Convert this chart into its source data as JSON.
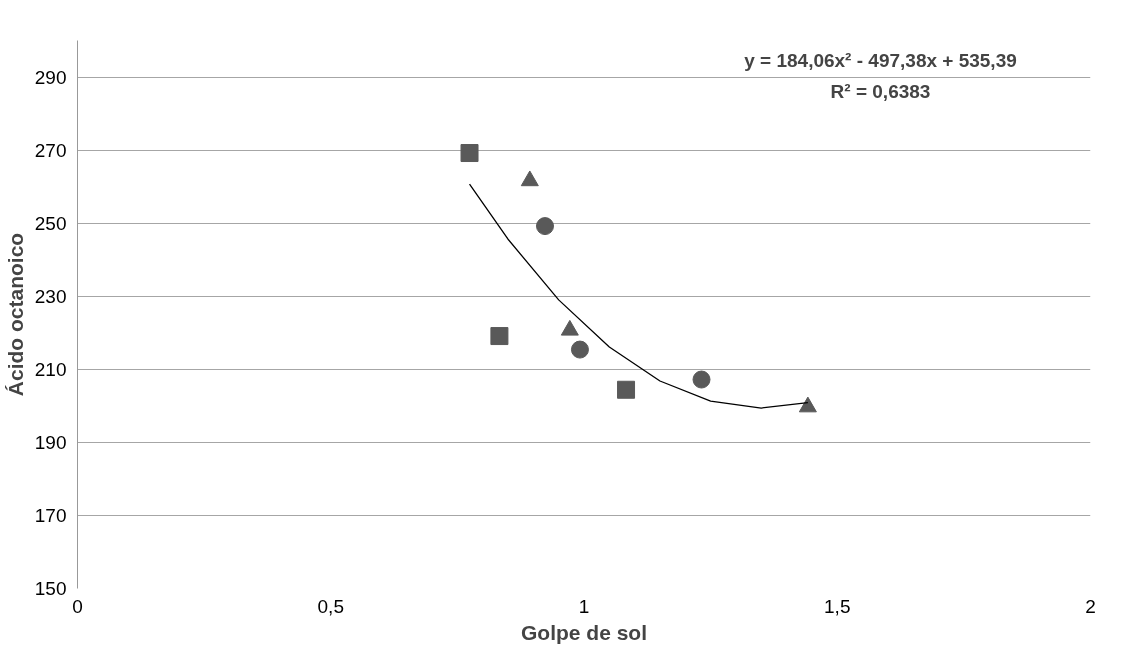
{
  "chart_data": {
    "type": "scatter",
    "xlabel": "Golpe de sol",
    "ylabel": "Ácido octanoico",
    "xlim": [
      0,
      2
    ],
    "xticks": [
      0,
      {
        "value": 0.5,
        "label": "0,5"
      },
      1,
      {
        "value": 1.5,
        "label": "1,5"
      },
      2
    ],
    "ylim": [
      150,
      300
    ],
    "yticks": [
      150,
      170,
      190,
      210,
      230,
      250,
      270,
      290
    ],
    "grid": "y",
    "series": [
      {
        "color": "#595959",
        "marker": "square",
        "x": [
          0.774,
          0.833,
          1.083
        ],
        "values": [
          269.2,
          219.1,
          204.4
        ]
      },
      {
        "color": "#595959",
        "marker": "triangle",
        "x": [
          0.893,
          0.972,
          1.442
        ],
        "values": [
          261.6,
          220.7,
          199.7
        ]
      },
      {
        "color": "#595959",
        "marker": "circle",
        "x": [
          0.923,
          0.992,
          1.232
        ],
        "values": [
          249.2,
          215.4,
          207.2
        ]
      },
      {
        "type": "line",
        "color": "#000000",
        "marker": "none",
        "line_style": "solid",
        "x": [
          0.774,
          0.85,
          0.95,
          1.05,
          1.15,
          1.25,
          1.35,
          1.442
        ],
        "values": [
          260.7,
          245.6,
          229.0,
          216.1,
          206.8,
          201.3,
          199.4,
          200.9
        ]
      }
    ],
    "annotations": [
      "y = 184,06x² - 497,38x + 535,39",
      "R² = 0,6383"
    ]
  }
}
